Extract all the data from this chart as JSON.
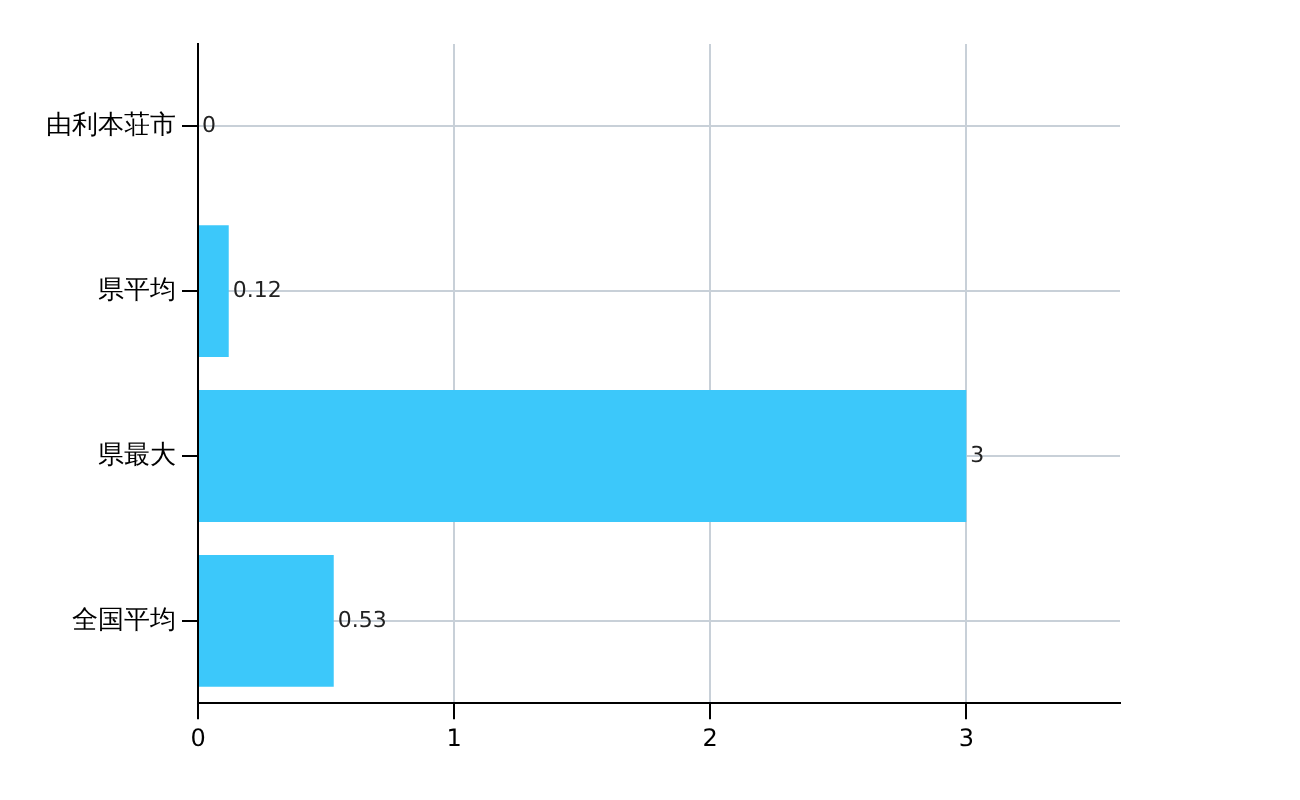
{
  "chart_data": {
    "type": "bar",
    "orientation": "horizontal",
    "categories": [
      "由利本荘市",
      "県平均",
      "県最大",
      "全国平均"
    ],
    "values": [
      0,
      0.12,
      3,
      0.53
    ],
    "color": "#3cc8fa",
    "xlim": [
      0,
      3.6
    ],
    "xticks": [
      0,
      1,
      2,
      3
    ],
    "grid": true,
    "legend": false,
    "data_labels": true
  }
}
